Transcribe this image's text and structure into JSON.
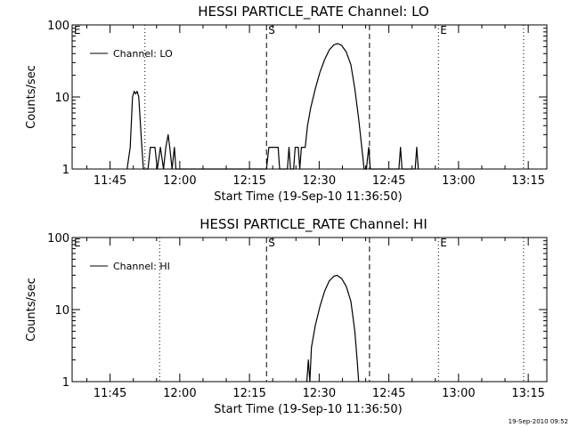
{
  "footer": {
    "timestamp": "19-Sep-2010 09:52"
  },
  "chart_data": [
    {
      "type": "line",
      "title": "HESSI PARTICLE_RATE Channel: LO",
      "xlabel": "Start Time (19-Sep-10 11:36:50)",
      "ylabel": "Counts/sec",
      "yscale": "log",
      "ylim": [
        1,
        100
      ],
      "yticks": [
        "1",
        "10",
        "100"
      ],
      "xlim": [
        "11:36:50",
        "13:19:00"
      ],
      "xticks": [
        "11:45",
        "12:00",
        "12:15",
        "12:30",
        "12:45",
        "13:00",
        "13:15"
      ],
      "grid": false,
      "legend": {
        "position": "top-left",
        "entries": [
          "Channel: LO"
        ]
      },
      "markers": [
        {
          "label": "E",
          "time": "11:36:50",
          "style": "dotted"
        },
        {
          "label": "",
          "time": "11:52:30",
          "style": "dotted"
        },
        {
          "label": "S",
          "time": "12:18:40",
          "style": "dashed"
        },
        {
          "label": "",
          "time": "12:40:50",
          "style": "dashed"
        },
        {
          "label": "E",
          "time": "12:55:40",
          "style": "dotted"
        },
        {
          "label": "",
          "time": "13:14:00",
          "style": "dotted"
        }
      ],
      "series": [
        {
          "name": "Channel: LO",
          "points": [
            [
              "11:48:40",
              1
            ],
            [
              "11:49:20",
              2
            ],
            [
              "11:49:50",
              10
            ],
            [
              "11:50:10",
              12
            ],
            [
              "11:50:30",
              11
            ],
            [
              "11:50:50",
              12
            ],
            [
              "11:51:10",
              10
            ],
            [
              "11:51:50",
              2
            ],
            [
              "11:52:10",
              1
            ],
            [
              "11:53:10",
              1
            ],
            [
              "11:53:40",
              2
            ],
            [
              "11:54:40",
              2
            ],
            [
              "11:55:10",
              1
            ],
            [
              "11:55:50",
              2
            ],
            [
              "11:56:30",
              1
            ],
            [
              "11:57:00",
              2
            ],
            [
              "11:57:30",
              3
            ],
            [
              "11:57:50",
              2
            ],
            [
              "11:58:20",
              1
            ],
            [
              "11:58:50",
              2
            ],
            [
              "11:59:10",
              1
            ],
            [
              "12:18:40",
              1
            ],
            [
              "12:19:10",
              2
            ],
            [
              "12:21:10",
              2
            ],
            [
              "12:21:30",
              1
            ],
            [
              "12:23:10",
              1
            ],
            [
              "12:23:30",
              2
            ],
            [
              "12:23:50",
              1
            ],
            [
              "12:24:30",
              1
            ],
            [
              "12:24:50",
              2
            ],
            [
              "12:25:30",
              2
            ],
            [
              "12:25:50",
              1
            ],
            [
              "12:26:10",
              2
            ],
            [
              "12:27:00",
              2
            ],
            [
              "12:27:30",
              4
            ],
            [
              "12:28:10",
              7
            ],
            [
              "12:29:10",
              13
            ],
            [
              "12:30:10",
              22
            ],
            [
              "12:31:10",
              33
            ],
            [
              "12:32:10",
              45
            ],
            [
              "12:33:10",
              53
            ],
            [
              "12:34:00",
              55
            ],
            [
              "12:34:50",
              52
            ],
            [
              "12:35:50",
              42
            ],
            [
              "12:36:50",
              28
            ],
            [
              "12:37:40",
              13
            ],
            [
              "12:38:30",
              5
            ],
            [
              "12:39:10",
              2
            ],
            [
              "12:39:40",
              1
            ],
            [
              "12:40:10",
              1
            ],
            [
              "12:40:40",
              2
            ],
            [
              "12:41:00",
              1
            ],
            [
              "12:47:10",
              1
            ],
            [
              "12:47:30",
              2
            ],
            [
              "12:47:50",
              1
            ],
            [
              "12:50:40",
              1
            ],
            [
              "12:51:00",
              2
            ],
            [
              "12:51:20",
              1
            ]
          ]
        }
      ]
    },
    {
      "type": "line",
      "title": "HESSI PARTICLE_RATE Channel: HI",
      "xlabel": "Start Time (19-Sep-10 11:36:50)",
      "ylabel": "Counts/sec",
      "yscale": "log",
      "ylim": [
        1,
        100
      ],
      "yticks": [
        "1",
        "10",
        "100"
      ],
      "xlim": [
        "11:36:50",
        "13:19:00"
      ],
      "xticks": [
        "11:45",
        "12:00",
        "12:15",
        "12:30",
        "12:45",
        "13:00",
        "13:15"
      ],
      "grid": false,
      "legend": {
        "position": "top-left",
        "entries": [
          "Channel: HI"
        ]
      },
      "markers": [
        {
          "label": "E",
          "time": "11:36:50",
          "style": "dotted"
        },
        {
          "label": "",
          "time": "11:55:40",
          "style": "dotted"
        },
        {
          "label": "S",
          "time": "12:18:40",
          "style": "dashed"
        },
        {
          "label": "",
          "time": "12:40:50",
          "style": "dashed"
        },
        {
          "label": "E",
          "time": "12:55:40",
          "style": "dotted"
        },
        {
          "label": "",
          "time": "13:14:00",
          "style": "dotted"
        }
      ],
      "series": [
        {
          "name": "Channel: HI",
          "points": [
            [
              "12:27:20",
              1
            ],
            [
              "12:27:40",
              2
            ],
            [
              "12:28:00",
              1
            ],
            [
              "12:28:20",
              3
            ],
            [
              "12:29:10",
              6
            ],
            [
              "12:30:10",
              11
            ],
            [
              "12:31:10",
              18
            ],
            [
              "12:32:10",
              25
            ],
            [
              "12:33:10",
              29
            ],
            [
              "12:33:50",
              30
            ],
            [
              "12:34:50",
              27
            ],
            [
              "12:35:50",
              21
            ],
            [
              "12:36:50",
              13
            ],
            [
              "12:37:40",
              5
            ],
            [
              "12:38:10",
              2
            ],
            [
              "12:38:30",
              1
            ]
          ]
        }
      ]
    }
  ]
}
